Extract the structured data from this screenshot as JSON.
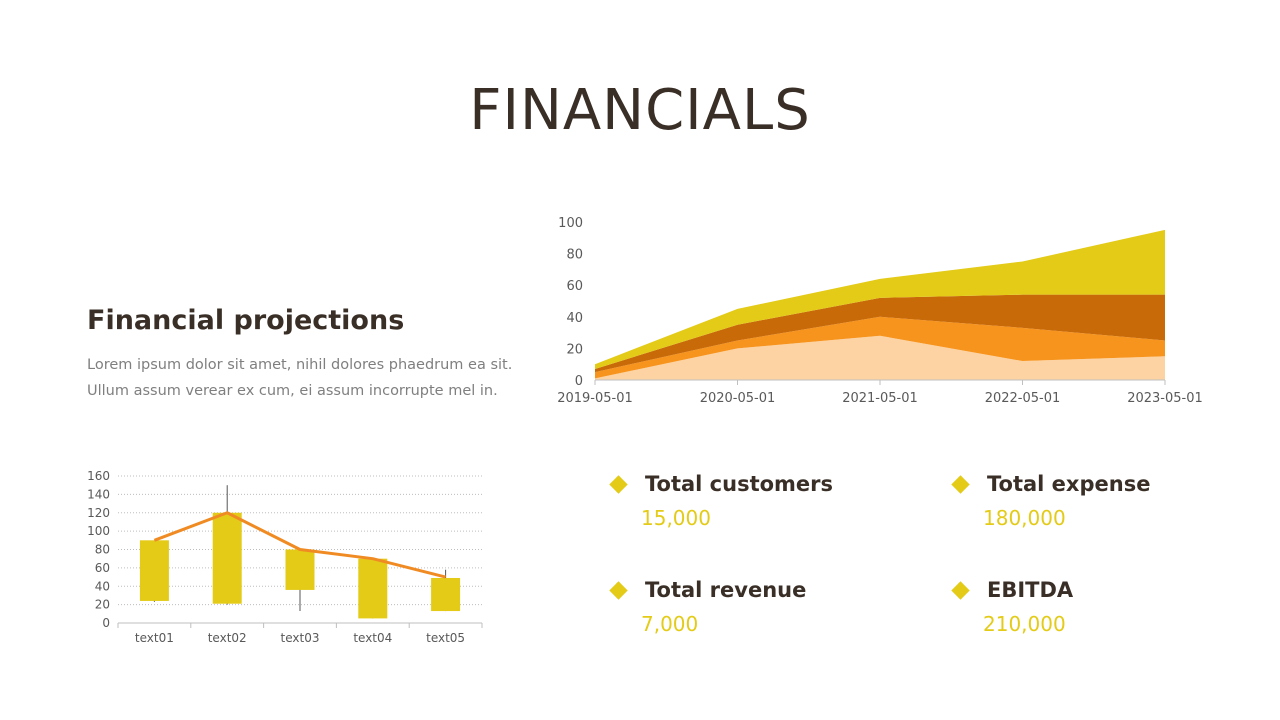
{
  "page": {
    "title": "FINANCIALS",
    "subtitle": "Financial projections",
    "description": "Lorem ipsum dolor sit amet, nihil dolores phaedrum ea sit. Ullum assum verear ex cum, ei assum incorrupte mel in."
  },
  "colors": {
    "accent": "#e3cb18",
    "dark_orange": "#c96a08",
    "orange": "#f7941d",
    "peach": "#fdd3a3",
    "line": "#f08b23",
    "text": "#3a2f27"
  },
  "stats": [
    {
      "label": "Total customers",
      "value": "15,000",
      "icon": "diamond-icon"
    },
    {
      "label": "Total expense",
      "value": "180,000",
      "icon": "diamond-icon"
    },
    {
      "label": "Total revenue",
      "value": "7,000",
      "icon": "diamond-icon"
    },
    {
      "label": "EBITDA",
      "value": "210,000",
      "icon": "diamond-icon"
    }
  ],
  "chart_data": [
    {
      "type": "area",
      "stacked": true,
      "x": [
        "2019-05-01",
        "2020-05-01",
        "2021-05-01",
        "2022-05-01",
        "2023-05-01"
      ],
      "ylim": [
        0,
        100
      ],
      "yticks": [
        0,
        20,
        40,
        60,
        80,
        100
      ],
      "grid": false,
      "series": [
        {
          "values": [
            1,
            20,
            28,
            12,
            15
          ],
          "color": "#fdd3a3"
        },
        {
          "values": [
            4,
            5,
            12,
            21,
            10
          ],
          "color": "#f7941d"
        },
        {
          "values": [
            2,
            10,
            12,
            21,
            29
          ],
          "color": "#c96a08"
        },
        {
          "values": [
            3,
            10,
            12,
            21,
            41
          ],
          "color": "#e3cb18"
        }
      ]
    },
    {
      "type": "bar",
      "subtype": "candlestick-with-line",
      "categories": [
        "text01",
        "text02",
        "text03",
        "text04",
        "text05"
      ],
      "ylim": [
        0,
        160
      ],
      "yticks": [
        0,
        20,
        40,
        60,
        80,
        100,
        120,
        140,
        160
      ],
      "grid": true,
      "bars": [
        {
          "low": 24,
          "high": 90,
          "wick_low": 23,
          "wick_high": 90
        },
        {
          "low": 21,
          "high": 120,
          "wick_low": 20,
          "wick_high": 150
        },
        {
          "low": 36,
          "high": 80,
          "wick_low": 13,
          "wick_high": 80
        },
        {
          "low": 5,
          "high": 70,
          "wick_low": 5,
          "wick_high": 70
        },
        {
          "low": 13,
          "high": 49,
          "wick_low": 13,
          "wick_high": 58
        }
      ],
      "line": [
        90,
        120,
        80,
        70,
        50
      ]
    }
  ]
}
